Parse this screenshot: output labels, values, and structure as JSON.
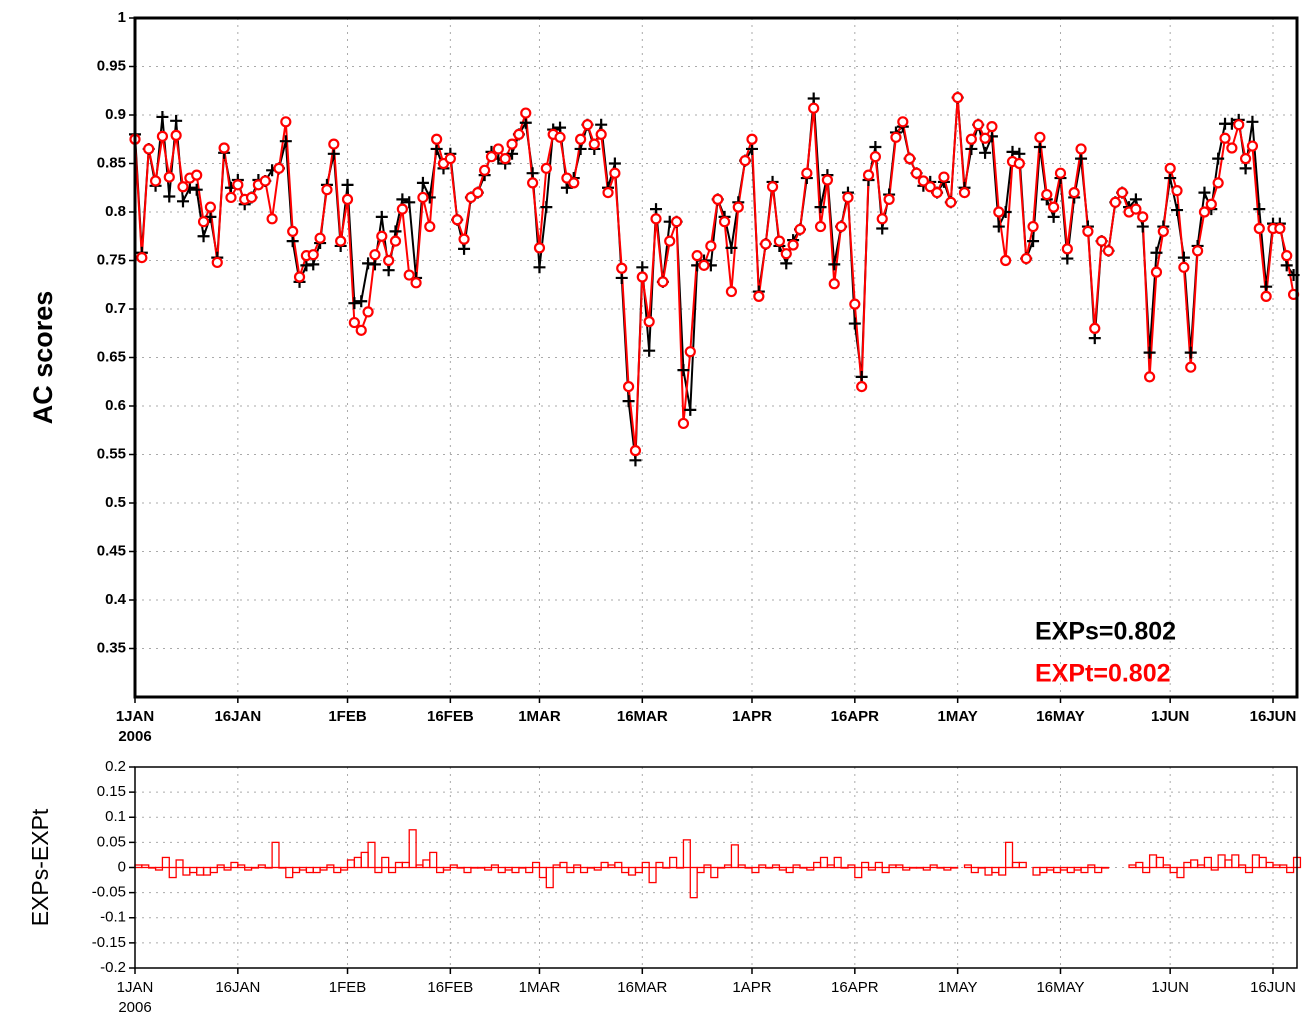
{
  "chart_data": [
    {
      "type": "line",
      "y_label": "AC scores",
      "year_label": "2006",
      "grid": true,
      "xlim": [
        0,
        169.5
      ],
      "ylim": [
        0.3,
        1
      ],
      "xticks": [
        {
          "value": 0,
          "label": "1JAN"
        },
        {
          "value": 15,
          "label": "16JAN"
        },
        {
          "value": 31,
          "label": "1FEB"
        },
        {
          "value": 46,
          "label": "16FEB"
        },
        {
          "value": 59,
          "label": "1MAR"
        },
        {
          "value": 74,
          "label": "16MAR"
        },
        {
          "value": 90,
          "label": "1APR"
        },
        {
          "value": 105,
          "label": "16APR"
        },
        {
          "value": 120,
          "label": "1MAY"
        },
        {
          "value": 135,
          "label": "16MAY"
        },
        {
          "value": 151,
          "label": "1JUN"
        },
        {
          "value": 166,
          "label": "16JUN"
        }
      ],
      "yticks": [
        0.35,
        0.4,
        0.45,
        0.5,
        0.55,
        0.6,
        0.65,
        0.7,
        0.75,
        0.8,
        0.85,
        0.9,
        0.95,
        1
      ],
      "x": [
        0,
        1,
        2,
        3,
        4,
        5,
        6,
        7,
        8,
        9,
        10,
        11,
        12,
        13,
        14,
        15,
        16,
        17,
        18,
        19,
        20,
        21,
        22,
        23,
        24,
        25,
        26,
        27,
        28,
        29,
        30,
        31,
        32,
        33,
        34,
        35,
        36,
        37,
        38,
        39,
        40,
        41,
        42,
        43,
        44,
        45,
        46,
        47,
        48,
        49,
        50,
        51,
        52,
        53,
        54,
        55,
        56,
        57,
        58,
        59,
        60,
        61,
        62,
        63,
        64,
        65,
        66,
        67,
        68,
        69,
        70,
        71,
        72,
        73,
        74,
        75,
        76,
        77,
        78,
        79,
        80,
        81,
        82,
        83,
        84,
        85,
        86,
        87,
        88,
        89,
        90,
        91,
        92,
        93,
        94,
        95,
        96,
        97,
        98,
        99,
        100,
        101,
        102,
        103,
        104,
        105,
        106,
        107,
        108,
        109,
        110,
        111,
        112,
        113,
        114,
        115,
        116,
        117,
        118,
        119,
        120,
        121,
        122,
        123,
        124,
        125,
        126,
        127,
        128,
        129,
        130,
        131,
        132,
        133,
        134,
        135,
        136,
        137,
        138,
        139,
        140,
        141,
        142,
        143,
        144,
        145,
        146,
        147,
        148,
        149,
        150,
        151,
        152,
        153,
        154,
        155,
        156,
        157,
        158,
        159,
        160,
        161,
        162,
        163,
        164,
        165,
        166,
        167,
        168,
        169
      ],
      "series": [
        {
          "name": "EXPs=0.802",
          "color": "#000000",
          "marker": "plus",
          "values": [
            0.88,
            0.758,
            0.865,
            0.827,
            0.898,
            0.816,
            0.894,
            0.811,
            0.825,
            0.823,
            0.775,
            0.795,
            0.753,
            0.861,
            0.825,
            0.833,
            0.808,
            0.815,
            0.833,
            0.832,
            0.843,
            0.845,
            0.873,
            0.77,
            0.728,
            0.745,
            0.746,
            0.768,
            0.828,
            0.86,
            0.765,
            0.828,
            0.706,
            0.708,
            0.747,
            0.746,
            0.795,
            0.74,
            0.78,
            0.813,
            0.81,
            0.732,
            0.83,
            0.815,
            0.865,
            0.845,
            0.86,
            0.792,
            0.762,
            0.815,
            0.82,
            0.838,
            0.862,
            0.855,
            0.85,
            0.86,
            0.88,
            0.892,
            0.84,
            0.743,
            0.805,
            0.885,
            0.887,
            0.825,
            0.835,
            0.865,
            0.89,
            0.865,
            0.89,
            0.825,
            0.85,
            0.732,
            0.605,
            0.544,
            0.743,
            0.657,
            0.803,
            0.728,
            0.79,
            0.79,
            0.637,
            0.596,
            0.745,
            0.75,
            0.745,
            0.813,
            0.795,
            0.763,
            0.81,
            0.853,
            0.865,
            0.718,
            0.767,
            0.831,
            0.765,
            0.747,
            0.771,
            0.782,
            0.835,
            0.917,
            0.805,
            0.838,
            0.746,
            0.785,
            0.82,
            0.685,
            0.63,
            0.833,
            0.867,
            0.783,
            0.818,
            0.882,
            0.888,
            0.855,
            0.84,
            0.827,
            0.831,
            0.82,
            0.831,
            0.81,
            0.918,
            0.825,
            0.865,
            0.89,
            0.861,
            0.878,
            0.785,
            0.8,
            0.862,
            0.86,
            0.752,
            0.77,
            0.867,
            0.813,
            0.795,
            0.835,
            0.752,
            0.815,
            0.855,
            0.785,
            0.67,
            0.77,
            0.76,
            0.81,
            0.82,
            0.805,
            0.813,
            0.785,
            0.655,
            0.758,
            0.785,
            0.835,
            0.802,
            0.753,
            0.655,
            0.765,
            0.82,
            0.803,
            0.855,
            0.891,
            0.891,
            0.895,
            0.845,
            0.893,
            0.803,
            0.723,
            0.788,
            0.788,
            0.745,
            0.735
          ]
        },
        {
          "name": "EXPt=0.802",
          "color": "#ff0000",
          "marker": "circle",
          "values": [
            0.875,
            0.753,
            0.865,
            0.832,
            0.878,
            0.836,
            0.879,
            0.826,
            0.835,
            0.838,
            0.79,
            0.805,
            0.748,
            0.866,
            0.815,
            0.828,
            0.813,
            0.815,
            0.828,
            0.832,
            0.793,
            0.845,
            0.893,
            0.78,
            0.733,
            0.755,
            0.756,
            0.773,
            0.823,
            0.87,
            0.77,
            0.813,
            0.686,
            0.678,
            0.697,
            0.756,
            0.775,
            0.75,
            0.77,
            0.803,
            0.735,
            0.727,
            0.815,
            0.785,
            0.875,
            0.85,
            0.855,
            0.792,
            0.772,
            0.815,
            0.82,
            0.843,
            0.857,
            0.865,
            0.855,
            0.87,
            0.88,
            0.902,
            0.83,
            0.763,
            0.845,
            0.88,
            0.877,
            0.835,
            0.83,
            0.875,
            0.89,
            0.87,
            0.88,
            0.82,
            0.84,
            0.742,
            0.62,
            0.554,
            0.733,
            0.687,
            0.793,
            0.728,
            0.77,
            0.79,
            0.582,
            0.656,
            0.755,
            0.745,
            0.765,
            0.813,
            0.79,
            0.718,
            0.805,
            0.853,
            0.875,
            0.713,
            0.767,
            0.826,
            0.77,
            0.757,
            0.766,
            0.782,
            0.84,
            0.907,
            0.785,
            0.833,
            0.726,
            0.785,
            0.815,
            0.705,
            0.62,
            0.838,
            0.857,
            0.793,
            0.813,
            0.877,
            0.893,
            0.855,
            0.84,
            0.832,
            0.826,
            0.82,
            0.836,
            0.81,
            0.918,
            0.82,
            0.875,
            0.89,
            0.876,
            0.888,
            0.8,
            0.75,
            0.852,
            0.85,
            0.752,
            0.785,
            0.877,
            0.818,
            0.805,
            0.84,
            0.762,
            0.82,
            0.865,
            0.78,
            0.68,
            0.77,
            0.76,
            0.81,
            0.82,
            0.8,
            0.803,
            0.795,
            0.63,
            0.738,
            0.78,
            0.845,
            0.822,
            0.743,
            0.64,
            0.76,
            0.8,
            0.808,
            0.83,
            0.876,
            0.866,
            0.89,
            0.855,
            0.868,
            0.783,
            0.713,
            0.783,
            0.783,
            0.755,
            0.715
          ]
        }
      ]
    },
    {
      "type": "bar",
      "y_label": "EXPs-EXPt",
      "year_label": "2006",
      "grid": true,
      "color": "#ff0000",
      "xlim": [
        0,
        169.5
      ],
      "ylim": [
        -0.2,
        0.2
      ],
      "xticks": [
        {
          "value": 0,
          "label": "1JAN"
        },
        {
          "value": 15,
          "label": "16JAN"
        },
        {
          "value": 31,
          "label": "1FEB"
        },
        {
          "value": 46,
          "label": "16FEB"
        },
        {
          "value": 59,
          "label": "1MAR"
        },
        {
          "value": 74,
          "label": "16MAR"
        },
        {
          "value": 90,
          "label": "1APR"
        },
        {
          "value": 105,
          "label": "16APR"
        },
        {
          "value": 120,
          "label": "1MAY"
        },
        {
          "value": 135,
          "label": "16MAY"
        },
        {
          "value": 151,
          "label": "1JUN"
        },
        {
          "value": 166,
          "label": "16JUN"
        }
      ],
      "yticks": [
        -0.2,
        -0.15,
        -0.1,
        -0.05,
        0,
        0.05,
        0.1,
        0.15,
        0.2
      ],
      "x": [
        0,
        1,
        2,
        3,
        4,
        5,
        6,
        7,
        8,
        9,
        10,
        11,
        12,
        13,
        14,
        15,
        16,
        17,
        18,
        19,
        20,
        21,
        22,
        23,
        24,
        25,
        26,
        27,
        28,
        29,
        30,
        31,
        32,
        33,
        34,
        35,
        36,
        37,
        38,
        39,
        40,
        41,
        42,
        43,
        44,
        45,
        46,
        47,
        48,
        49,
        50,
        51,
        52,
        53,
        54,
        55,
        56,
        57,
        58,
        59,
        60,
        61,
        62,
        63,
        64,
        65,
        66,
        67,
        68,
        69,
        70,
        71,
        72,
        73,
        74,
        75,
        76,
        77,
        78,
        79,
        80,
        81,
        82,
        83,
        84,
        85,
        86,
        87,
        88,
        89,
        90,
        91,
        92,
        93,
        94,
        95,
        96,
        97,
        98,
        99,
        100,
        101,
        102,
        103,
        104,
        105,
        106,
        107,
        108,
        109,
        110,
        111,
        112,
        113,
        114,
        115,
        116,
        117,
        118,
        119,
        120,
        121,
        122,
        123,
        124,
        125,
        126,
        127,
        128,
        129,
        130,
        131,
        132,
        133,
        134,
        135,
        136,
        137,
        138,
        139,
        140,
        141,
        142,
        143,
        144,
        145,
        146,
        147,
        148,
        149,
        150,
        151,
        152,
        153,
        154,
        155,
        156,
        157,
        158,
        159,
        160,
        161,
        162,
        163,
        164,
        165,
        166,
        167,
        168,
        169
      ],
      "values": [
        0.005,
        0.005,
        0,
        -0.005,
        0.02,
        -0.02,
        0.015,
        -0.015,
        -0.01,
        -0.015,
        -0.015,
        -0.01,
        0.005,
        -0.005,
        0.01,
        0.005,
        -0.005,
        0,
        0.005,
        0,
        0.05,
        0,
        -0.02,
        -0.01,
        -0.005,
        -0.01,
        -0.01,
        -0.005,
        0.005,
        -0.01,
        -0.005,
        0.015,
        0.02,
        0.03,
        0.05,
        -0.01,
        0.02,
        -0.01,
        0.01,
        0.01,
        0.075,
        0.005,
        0.015,
        0.03,
        -0.01,
        -0.005,
        0.005,
        0,
        -0.01,
        0,
        0,
        -0.005,
        0.005,
        -0.01,
        -0.005,
        -0.01,
        0,
        -0.01,
        0.01,
        -0.02,
        -0.04,
        0.005,
        0.01,
        -0.01,
        0.005,
        -0.01,
        0,
        -0.005,
        0.01,
        0.005,
        0.01,
        -0.01,
        -0.015,
        -0.01,
        0.01,
        -0.03,
        0.01,
        0,
        0.02,
        0,
        0.055,
        -0.06,
        -0.01,
        0.005,
        -0.02,
        0,
        0.005,
        0.045,
        0.005,
        0,
        -0.01,
        0.005,
        0,
        0.005,
        -0.005,
        -0.01,
        0.005,
        0,
        -0.005,
        0.01,
        0.02,
        0.005,
        0.02,
        0,
        0.005,
        -0.02,
        0.01,
        -0.005,
        0.01,
        -0.01,
        0.005,
        0.005,
        -0.005,
        0,
        0,
        -0.005,
        0.005,
        0,
        -0.005,
        0,
        null,
        0.005,
        -0.01,
        0,
        -0.015,
        -0.01,
        -0.015,
        0.05,
        0.01,
        0.01,
        null,
        -0.015,
        -0.01,
        -0.005,
        -0.01,
        -0.005,
        -0.01,
        -0.005,
        -0.01,
        0.005,
        -0.01,
        0,
        null,
        null,
        null,
        0.005,
        0.01,
        -0.01,
        0.025,
        0.02,
        0.005,
        -0.01,
        -0.02,
        0.01,
        0.015,
        0.005,
        0.02,
        -0.005,
        0.025,
        0.015,
        0.025,
        0.005,
        -0.01,
        0.025,
        0.02,
        0.01,
        0.005,
        0.005,
        -0.01,
        0.02
      ]
    }
  ]
}
